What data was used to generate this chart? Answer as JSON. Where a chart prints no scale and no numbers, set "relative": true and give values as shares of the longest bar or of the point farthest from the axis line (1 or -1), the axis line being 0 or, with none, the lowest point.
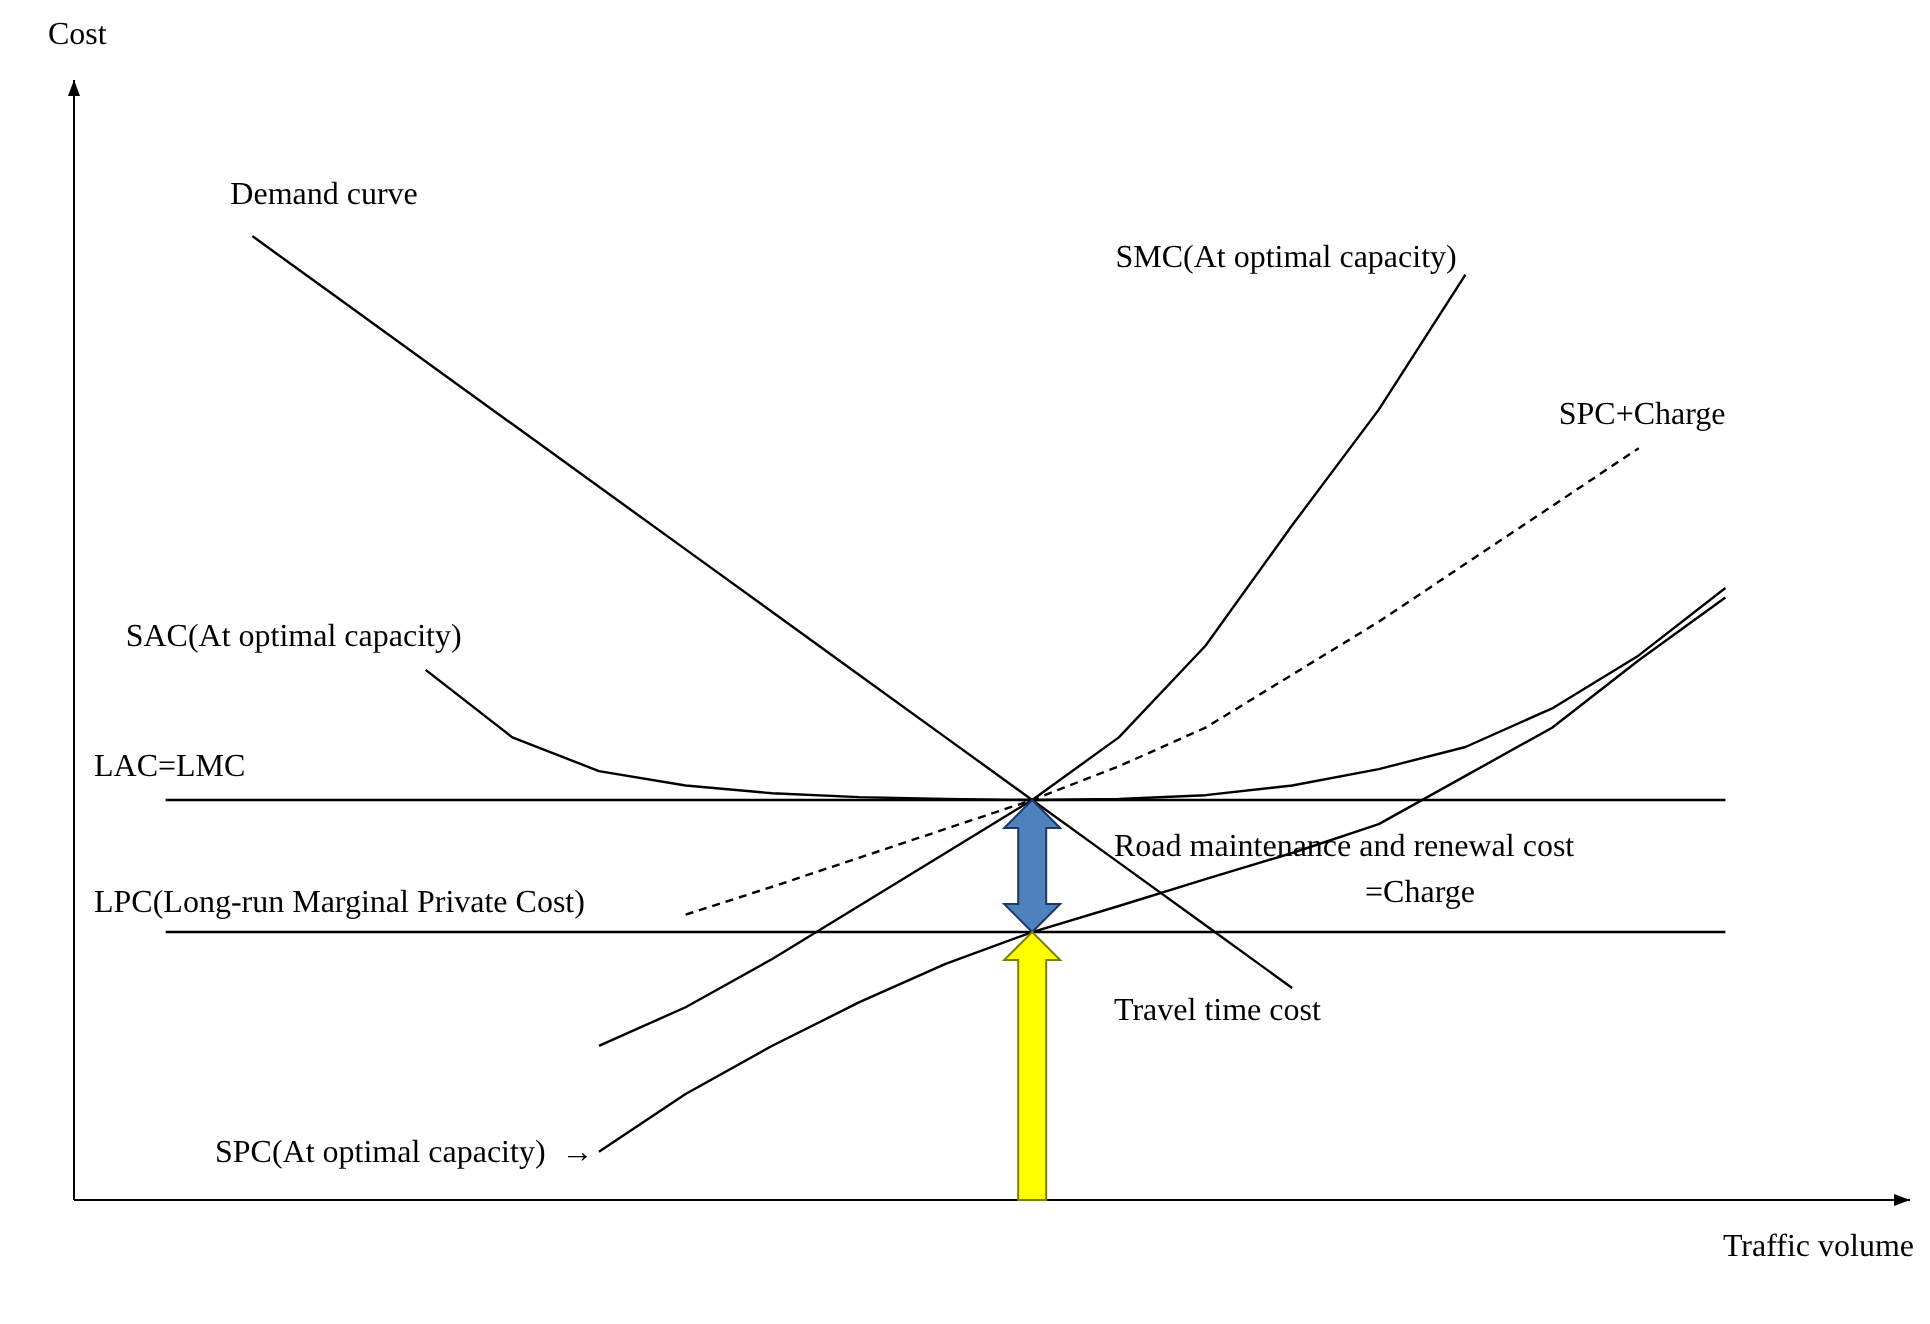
{
  "chart_data": {
    "type": "line",
    "relative": true,
    "xlabel": "Traffic volume",
    "legend": false,
    "marker": "none",
    "categories": [
      null,
      null,
      null,
      null,
      null,
      null,
      null,
      null,
      null,
      null,
      null,
      null,
      null,
      null,
      null,
      null,
      null,
      null,
      null
    ],
    "series": [
      {
        "name": "Demand curve",
        "color": "#000000",
        "values": [
          null,
          1,
          0.935,
          0.87,
          0.805,
          0.74,
          0.675,
          0.61,
          0.545,
          0.48,
          0.415,
          0.35,
          0.285,
          0.22,
          null,
          null,
          null,
          null,
          null
        ]
      },
      {
        "name": "SAC(At optimal capacity)",
        "color": "#000000",
        "values": [
          null,
          null,
          null,
          0.55,
          0.48,
          0.445,
          0.43,
          0.422,
          0.418,
          0.416,
          0.415,
          0.416,
          0.42,
          0.43,
          0.447,
          0.47,
          0.51,
          0.565,
          0.635
        ]
      },
      {
        "name": "SMC(At optimal capacity)",
        "color": "#000000",
        "values": [
          null,
          null,
          null,
          null,
          null,
          0.16,
          0.2,
          0.25,
          0.305,
          0.36,
          0.415,
          0.48,
          0.575,
          0.7,
          0.82,
          0.96,
          null,
          null,
          null
        ]
      },
      {
        "name": "SPC+Charge",
        "color": "#000000",
        "line_style": "dashed",
        "values": [
          null,
          null,
          null,
          null,
          null,
          null,
          0.296,
          0.325,
          0.355,
          0.385,
          0.415,
          0.45,
          0.49,
          0.545,
          0.6,
          0.66,
          0.72,
          0.78,
          null
        ]
      },
      {
        "name": "LAC=LMC",
        "color": "#000000",
        "values": [
          0.415,
          0.415,
          0.415,
          0.415,
          0.415,
          0.415,
          0.415,
          0.415,
          0.415,
          0.415,
          0.415,
          0.415,
          0.415,
          0.415,
          0.415,
          0.415,
          0.415,
          0.415,
          0.415
        ]
      },
      {
        "name": "LPC(Long-run Marginal Private Cost)",
        "color": "#000000",
        "values": [
          0.278,
          0.278,
          0.278,
          0.278,
          0.278,
          0.278,
          0.278,
          0.278,
          0.278,
          0.278,
          0.278,
          0.278,
          0.278,
          0.278,
          0.278,
          0.278,
          0.278,
          0.278,
          0.278
        ]
      },
      {
        "name": "SPC(At optimal capacity)  →",
        "color": "#000000",
        "values": [
          null,
          null,
          null,
          null,
          null,
          0.05,
          0.11,
          0.16,
          0.205,
          0.245,
          0.278,
          0.305,
          0.333,
          0.36,
          0.39,
          0.44,
          0.49,
          0.56,
          0.625
        ]
      }
    ],
    "annotations": [
      "Road maintenance and renewal cost",
      "=Charge",
      "Travel time cost",
      "Cost"
    ]
  }
}
